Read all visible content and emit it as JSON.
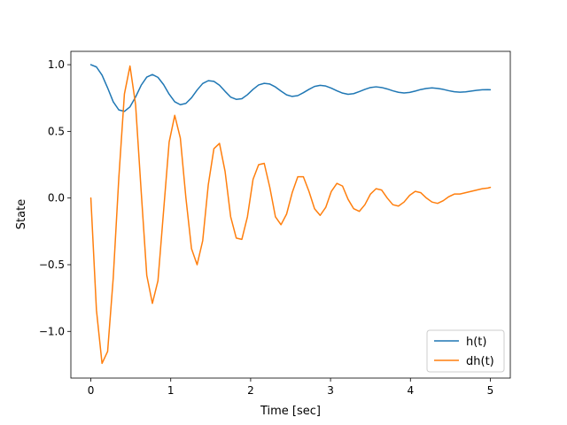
{
  "chart_data": {
    "type": "line",
    "title": "",
    "xlabel": "Time [sec]",
    "ylabel": "State",
    "xlim": [
      -0.25,
      5.25
    ],
    "ylim": [
      -1.35,
      1.1
    ],
    "xticks": [
      0,
      1,
      2,
      3,
      4,
      5
    ],
    "yticks": [
      -1.0,
      -0.5,
      0.0,
      0.5,
      1.0
    ],
    "xtick_labels": [
      "0",
      "1",
      "2",
      "3",
      "4",
      "5"
    ],
    "ytick_labels": [
      "−1.0",
      "−0.5",
      "0.0",
      "0.5",
      "1.0"
    ],
    "grid": false,
    "legend_position": "lower-right",
    "colors": {
      "h": "#1f77b4",
      "dh": "#ff7f0e"
    },
    "x": [
      0.0,
      0.07,
      0.14,
      0.21,
      0.28,
      0.35,
      0.42,
      0.49,
      0.56,
      0.63,
      0.7,
      0.77,
      0.84,
      0.91,
      0.98,
      1.05,
      1.12,
      1.19,
      1.26,
      1.33,
      1.4,
      1.47,
      1.54,
      1.61,
      1.68,
      1.75,
      1.82,
      1.89,
      1.96,
      2.03,
      2.1,
      2.17,
      2.24,
      2.31,
      2.38,
      2.45,
      2.52,
      2.59,
      2.66,
      2.73,
      2.8,
      2.87,
      2.94,
      3.01,
      3.08,
      3.15,
      3.22,
      3.29,
      3.36,
      3.43,
      3.5,
      3.57,
      3.64,
      3.71,
      3.78,
      3.85,
      3.92,
      3.99,
      4.06,
      4.13,
      4.2,
      4.27,
      4.34,
      4.41,
      4.48,
      4.55,
      4.62,
      4.69,
      4.76,
      4.83,
      4.9,
      4.97,
      5.0
    ],
    "series": [
      {
        "name": "h(t)",
        "values": [
          1.0,
          0.983,
          0.922,
          0.826,
          0.722,
          0.661,
          0.65,
          0.684,
          0.758,
          0.846,
          0.907,
          0.926,
          0.905,
          0.851,
          0.779,
          0.722,
          0.7,
          0.71,
          0.752,
          0.81,
          0.859,
          0.88,
          0.875,
          0.846,
          0.8,
          0.757,
          0.74,
          0.745,
          0.775,
          0.815,
          0.848,
          0.86,
          0.855,
          0.833,
          0.802,
          0.774,
          0.762,
          0.768,
          0.79,
          0.815,
          0.837,
          0.845,
          0.84,
          0.824,
          0.804,
          0.787,
          0.778,
          0.783,
          0.798,
          0.815,
          0.829,
          0.834,
          0.829,
          0.818,
          0.804,
          0.793,
          0.788,
          0.792,
          0.802,
          0.814,
          0.822,
          0.826,
          0.822,
          0.815,
          0.805,
          0.797,
          0.794,
          0.796,
          0.802,
          0.808,
          0.812,
          0.813,
          0.812
        ]
      },
      {
        "name": "dh(t)",
        "values": [
          0.0,
          -0.84,
          -1.24,
          -1.15,
          -0.6,
          0.15,
          0.78,
          0.99,
          0.7,
          0.05,
          -0.58,
          -0.79,
          -0.62,
          -0.1,
          0.42,
          0.62,
          0.45,
          0.0,
          -0.38,
          -0.5,
          -0.32,
          0.1,
          0.37,
          0.41,
          0.2,
          -0.14,
          -0.3,
          -0.31,
          -0.14,
          0.14,
          0.25,
          0.26,
          0.08,
          -0.14,
          -0.2,
          -0.12,
          0.04,
          0.16,
          0.16,
          0.05,
          -0.08,
          -0.13,
          -0.07,
          0.05,
          0.11,
          0.09,
          -0.01,
          -0.08,
          -0.1,
          -0.05,
          0.03,
          0.07,
          0.06,
          0.0,
          -0.05,
          -0.06,
          -0.03,
          0.02,
          0.05,
          0.04,
          0.0,
          -0.03,
          -0.04,
          -0.02,
          0.01,
          0.03,
          0.03,
          0.04,
          0.05,
          0.06,
          0.07,
          0.075,
          0.08
        ]
      }
    ]
  }
}
